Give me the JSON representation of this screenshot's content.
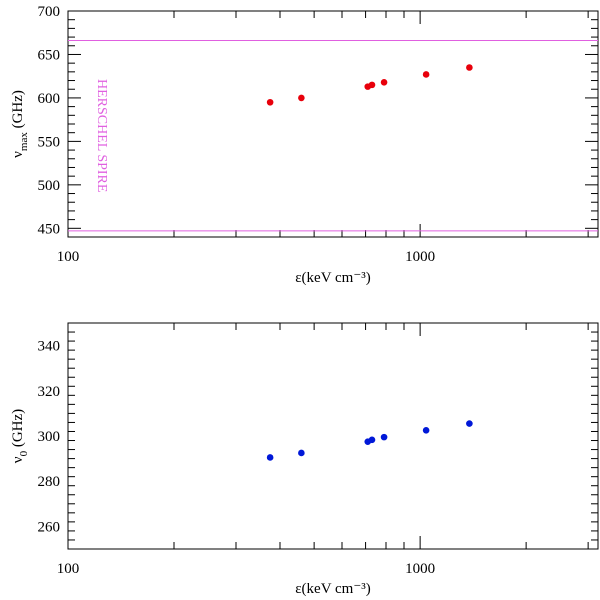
{
  "chart_data": [
    {
      "type": "scatter",
      "panel": "top",
      "xscale": "log",
      "xlim": [
        100,
        3200
      ],
      "ylim": [
        440,
        700
      ],
      "xlabel": "ε(keV cm⁻³)",
      "ylabel_main": "ν",
      "ylabel_sub": "max",
      "ylabel_unit": "(GHz)",
      "xticks": [
        100,
        1000
      ],
      "xtick_labels": [
        "100",
        "1000"
      ],
      "yticks": [
        450,
        500,
        550,
        600,
        650,
        700
      ],
      "ytick_labels": [
        "450",
        "500",
        "550",
        "600",
        "650",
        "700"
      ],
      "marker_color": "#e8000b",
      "band": {
        "label": "HERSCHEL SPIRE",
        "lower": 447,
        "upper": 666,
        "color": "#e060e0"
      },
      "series": [
        {
          "name": "nu_max",
          "x": [
            375,
            460,
            710,
            730,
            790,
            1040,
            1380
          ],
          "y": [
            595,
            600,
            613,
            615,
            618,
            627,
            635
          ]
        }
      ]
    },
    {
      "type": "scatter",
      "panel": "bottom",
      "xscale": "log",
      "xlim": [
        100,
        3200
      ],
      "ylim": [
        250,
        350
      ],
      "xlabel": "ε(keV cm⁻³)",
      "ylabel_main": "ν",
      "ylabel_sub": "0",
      "ylabel_unit": "(GHz)",
      "xticks": [
        100,
        1000
      ],
      "xtick_labels": [
        "100",
        "1000"
      ],
      "yticks": [
        260,
        280,
        300,
        320,
        340
      ],
      "ytick_labels": [
        "260",
        "280",
        "300",
        "320",
        "340"
      ],
      "marker_color": "#0018d8",
      "series": [
        {
          "name": "nu_0",
          "x": [
            375,
            460,
            710,
            730,
            790,
            1040,
            1380
          ],
          "y": [
            290.5,
            292.5,
            297.5,
            298.3,
            299.5,
            302.5,
            305.5
          ]
        }
      ]
    }
  ]
}
